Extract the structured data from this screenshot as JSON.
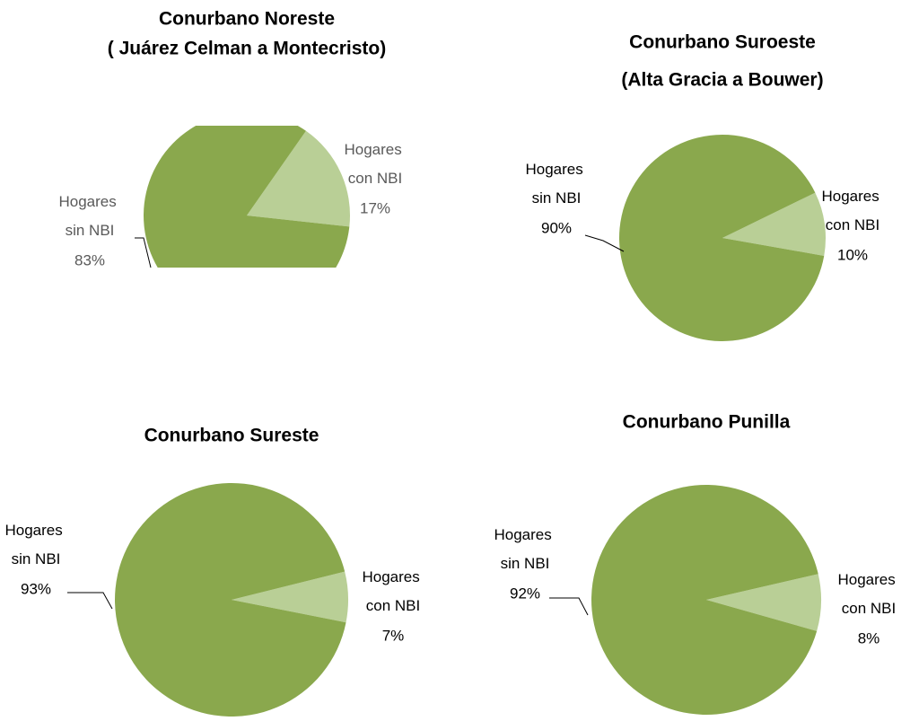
{
  "chart_data": [
    {
      "type": "pie",
      "title": "Conurbano Noreste",
      "subtitle": "( Juárez Celman a Montecristo)",
      "categories": [
        "Hogares con NBI",
        "Hogares sin NBI"
      ],
      "values": [
        17,
        83
      ],
      "value_labels": [
        "17%",
        "83%"
      ],
      "colors": [
        "#b9cf96",
        "#8aa84d"
      ]
    },
    {
      "type": "pie",
      "title": "Conurbano Suroeste",
      "subtitle": "(Alta Gracia a Bouwer)",
      "categories": [
        "Hogares con NBI",
        "Hogares sin NBI"
      ],
      "values": [
        10,
        90
      ],
      "value_labels": [
        "10%",
        "90%"
      ],
      "colors": [
        "#b9cf96",
        "#8aa84d"
      ]
    },
    {
      "type": "pie",
      "title": "Conurbano Sureste",
      "categories": [
        "Hogares con NBI",
        "Hogares sin NBI"
      ],
      "values": [
        7,
        93
      ],
      "value_labels": [
        "7%",
        "93%"
      ],
      "colors": [
        "#b9cf96",
        "#8aa84d"
      ]
    },
    {
      "type": "pie",
      "title": "Conurbano Punilla",
      "categories": [
        "Hogares con NBI",
        "Hogares sin NBI"
      ],
      "values": [
        8,
        92
      ],
      "value_labels": [
        "8%",
        "92%"
      ],
      "colors": [
        "#b9cf96",
        "#8aa84d"
      ]
    }
  ]
}
